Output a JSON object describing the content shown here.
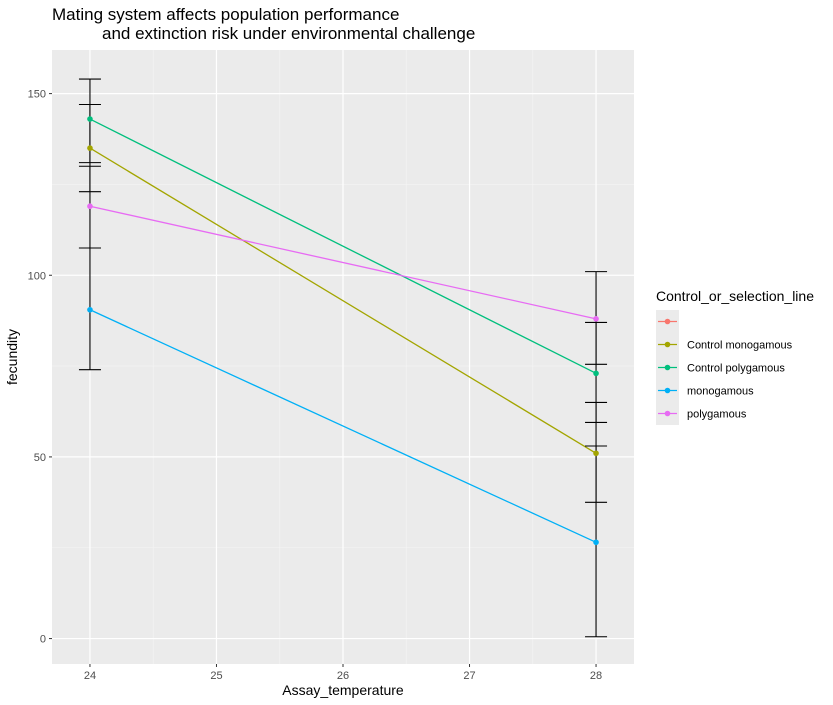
{
  "chart_data": {
    "type": "line",
    "title_lines": [
      "Mating system affects population performance",
      "and extinction risk under environmental challenge"
    ],
    "xlabel": "Assay_temperature",
    "ylabel": "fecundity",
    "xlim": [
      23.7,
      28.3
    ],
    "ylim": [
      -7,
      162
    ],
    "x_ticks": [
      24,
      25,
      26,
      27,
      28
    ],
    "y_ticks": [
      0,
      50,
      100,
      150
    ],
    "grid": true,
    "legend": {
      "title": "Control_or_selection_line",
      "position": "right"
    },
    "series": [
      {
        "name": "",
        "color": "#F8766D",
        "points": []
      },
      {
        "name": "Control monogamous",
        "color": "#A3A500",
        "points": [
          {
            "x": 24,
            "y": 135,
            "ymin": 123,
            "ymax": 147
          },
          {
            "x": 28,
            "y": 51,
            "ymin": 37.5,
            "ymax": 65
          }
        ]
      },
      {
        "name": "Control polygamous",
        "color": "#00BF7D",
        "points": [
          {
            "x": 24,
            "y": 143,
            "ymin": 131,
            "ymax": 154
          },
          {
            "x": 28,
            "y": 73,
            "ymin": 59.5,
            "ymax": 87
          }
        ]
      },
      {
        "name": "monogamous",
        "color": "#00B0F6",
        "points": [
          {
            "x": 24,
            "y": 90.5,
            "ymin": 74,
            "ymax": 107.5
          },
          {
            "x": 28,
            "y": 26.5,
            "ymin": 0.5,
            "ymax": 53
          }
        ]
      },
      {
        "name": "polygamous",
        "color": "#E76BF3",
        "points": [
          {
            "x": 24,
            "y": 119,
            "ymin": 107.5,
            "ymax": 130
          },
          {
            "x": 28,
            "y": 88,
            "ymin": 75.5,
            "ymax": 101
          }
        ]
      }
    ],
    "errorbar_color": "#000000"
  }
}
